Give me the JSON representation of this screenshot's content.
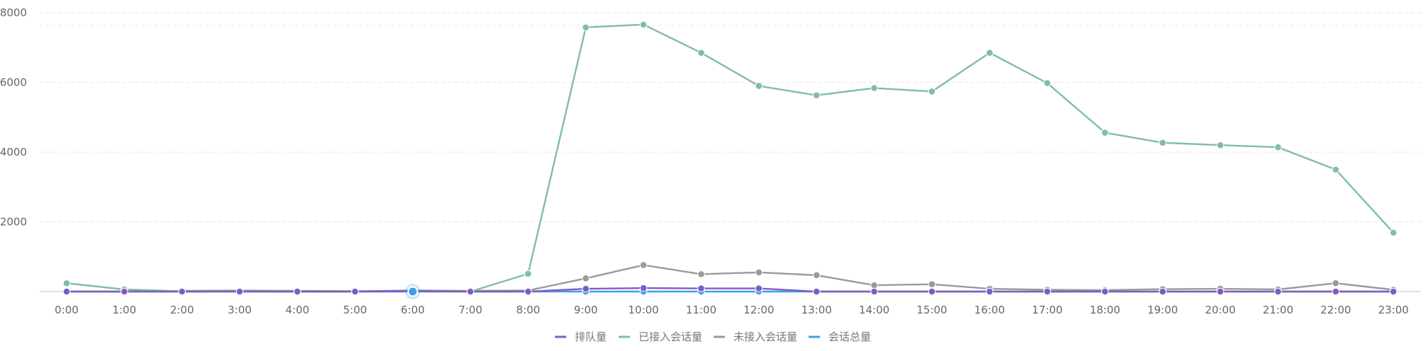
{
  "chart_data": {
    "type": "line",
    "title": "",
    "xlabel": "",
    "ylabel": "",
    "categories": [
      "0:00",
      "1:00",
      "2:00",
      "3:00",
      "4:00",
      "5:00",
      "6:00",
      "7:00",
      "8:00",
      "9:00",
      "10:00",
      "11:00",
      "12:00",
      "13:00",
      "14:00",
      "15:00",
      "16:00",
      "17:00",
      "18:00",
      "19:00",
      "20:00",
      "21:00",
      "22:00",
      "23:00"
    ],
    "ylim": [
      0,
      8000
    ],
    "yticks": [
      2000,
      4000,
      6000,
      8000
    ],
    "grid": true,
    "legend_position": "bottom-center",
    "highlighted_point": {
      "series": "会话总量",
      "category": "6:00"
    },
    "series": [
      {
        "name": "排队量",
        "color": "#7e5cc4",
        "values": [
          0,
          0,
          0,
          0,
          0,
          0,
          20,
          0,
          0,
          80,
          100,
          90,
          90,
          0,
          0,
          0,
          0,
          0,
          0,
          0,
          0,
          0,
          0,
          0
        ]
      },
      {
        "name": "已接入会话量",
        "color": "#7fbf9e",
        "values": [
          240,
          60,
          10,
          10,
          0,
          0,
          0,
          0,
          510,
          7580,
          7660,
          6850,
          5900,
          5630,
          5840,
          5740,
          6850,
          5980,
          4560,
          4270,
          4200,
          4140,
          3500,
          1690
        ]
      },
      {
        "name": "未接入会话量",
        "color": "#9a9a9a",
        "values": [
          0,
          0,
          20,
          30,
          20,
          10,
          30,
          20,
          30,
          380,
          760,
          500,
          550,
          470,
          180,
          210,
          80,
          50,
          40,
          70,
          80,
          60,
          240,
          50
        ]
      },
      {
        "name": "会话总量",
        "color": "#3aa0e8",
        "values": [
          0,
          0,
          0,
          0,
          0,
          0,
          0,
          0,
          0,
          0,
          0,
          0,
          0,
          0,
          0,
          0,
          0,
          0,
          0,
          0,
          0,
          0,
          0,
          0
        ]
      }
    ]
  }
}
